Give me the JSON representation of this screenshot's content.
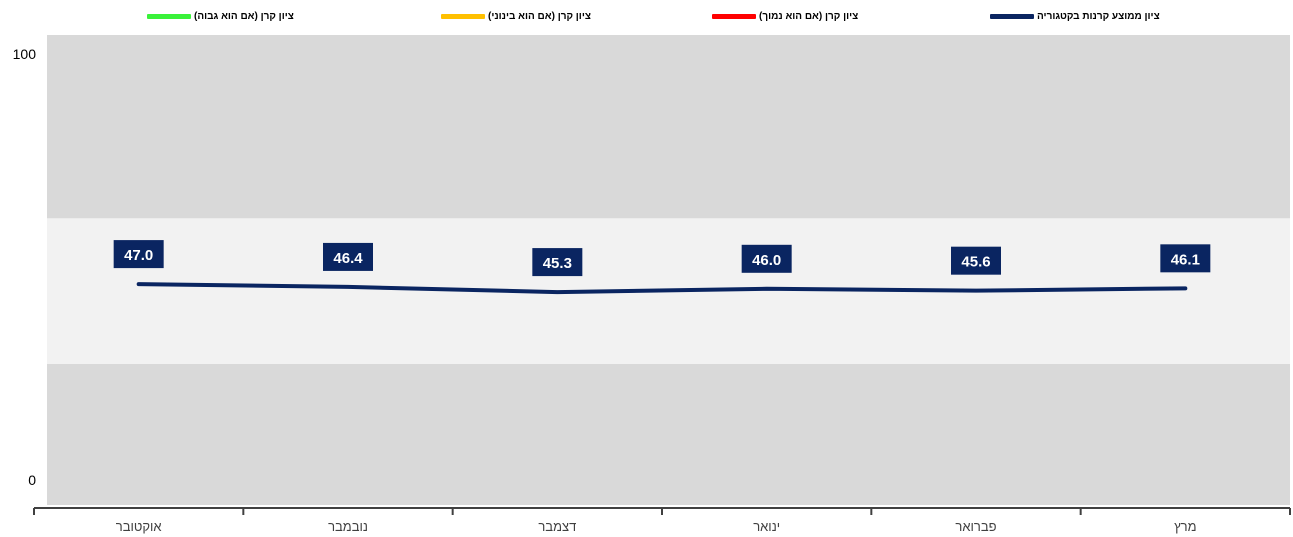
{
  "colors": {
    "band_outer": "#d9d9d9",
    "band_inner": "#f2f2f2",
    "series_line": "#0a2561",
    "label_box": "#0a2561",
    "legend_green": "#3af23a",
    "legend_yellow": "#ffc000",
    "legend_red": "#ff0000",
    "legend_navy": "#0a2561"
  },
  "legend": [
    {
      "label": "ציון ממוצע קרנות בקטגוריה",
      "color": "#0a2561",
      "icon": "line-swatch-icon"
    },
    {
      "label": "ציון קרן (אם הוא נמוך)",
      "color": "#ff0000",
      "icon": "line-swatch-icon"
    },
    {
      "label": "ציון קרן (אם הוא בינוני)",
      "color": "#ffc000",
      "icon": "line-swatch-icon"
    },
    {
      "label": "ציון קרן (אם הוא גבוה)",
      "color": "#3af23a",
      "icon": "line-swatch-icon"
    }
  ],
  "chart_data": {
    "type": "line",
    "categories": [
      "אוקטובר",
      "נובמבר",
      "דצמבר",
      "ינואר",
      "פברואר",
      "מרץ"
    ],
    "series": [
      {
        "name": "ציון ממוצע קרנות בקטגוריה",
        "values": [
          47.0,
          46.4,
          45.3,
          46.0,
          45.6,
          46.1
        ],
        "labels": [
          "47.0",
          "46.4",
          "45.3",
          "46.0",
          "45.6",
          "46.1"
        ]
      }
    ],
    "bands": [
      {
        "from": 0,
        "to": 30,
        "color": "#d9d9d9"
      },
      {
        "from": 30,
        "to": 61,
        "color": "#f2f2f2"
      },
      {
        "from": 61,
        "to": 100,
        "color": "#d9d9d9"
      }
    ],
    "ylim": [
      0,
      100
    ],
    "yticks": [
      "0",
      "100"
    ],
    "title": "",
    "xlabel": "",
    "ylabel": "",
    "grid": false,
    "legend_position": "top"
  }
}
